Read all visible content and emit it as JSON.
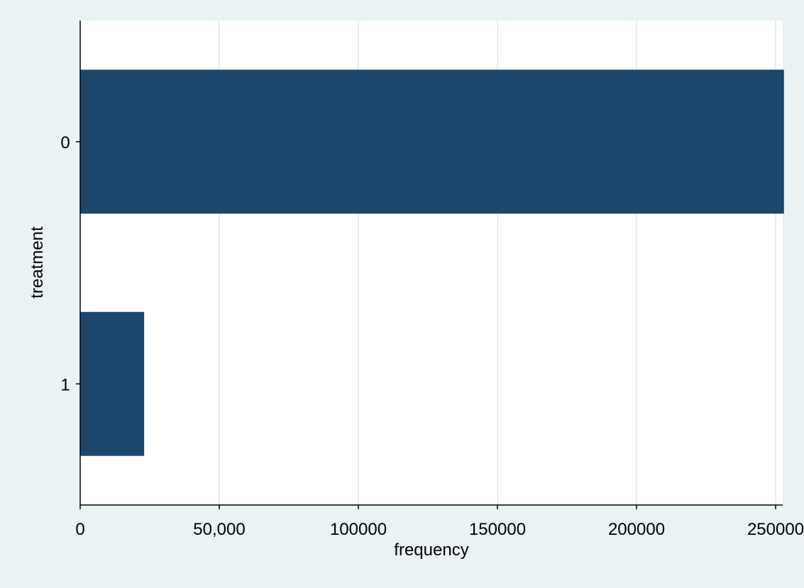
{
  "chart_data": {
    "type": "bar",
    "orientation": "horizontal",
    "categories": [
      "0",
      "1"
    ],
    "values": [
      253000,
      23000
    ],
    "xlabel": "frequency",
    "ylabel": "treatment",
    "xlim": [
      0,
      260000
    ],
    "xticks": [
      {
        "value": 0,
        "label": "0"
      },
      {
        "value": 50000,
        "label": "50,000"
      },
      {
        "value": 100000,
        "label": "100000"
      },
      {
        "value": 150000,
        "label": "150000"
      },
      {
        "value": 200000,
        "label": "200000"
      },
      {
        "value": 250000,
        "label": "250000"
      }
    ],
    "grid": "vertical",
    "legend": "none",
    "colors": {
      "bar": "#1c466c",
      "plot_background": "#ffffff",
      "outer_background": "#eaf2f3",
      "grid": "#e5eeef",
      "axis": "#000000"
    }
  }
}
